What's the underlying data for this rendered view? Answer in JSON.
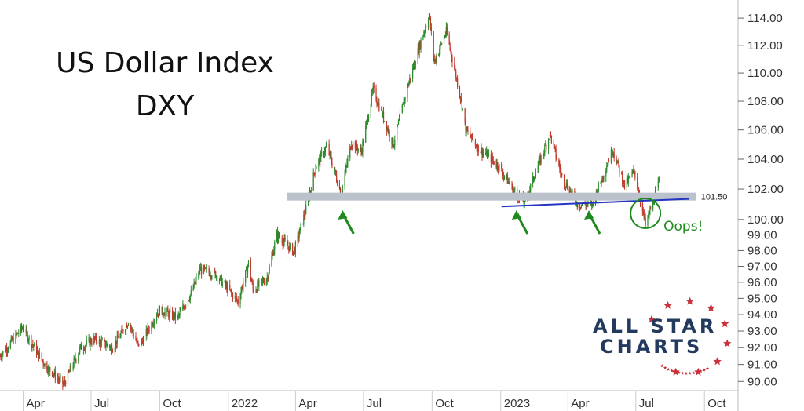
{
  "title_lines": [
    "US Dollar Index",
    "DXY"
  ],
  "logo": {
    "line1": "ALL STAR",
    "line2": "CHARTS",
    "navy": "#233a5e",
    "star_color": "#c8323a"
  },
  "colors": {
    "up": "#2e8b2e",
    "down": "#c0392b",
    "band": "#bcc2cb",
    "trendline": "#2434c4",
    "annotation": "#1e8a1e"
  },
  "chart_data": {
    "type": "candlestick",
    "title": "US Dollar Index DXY",
    "x_range": [
      "2021-03-01",
      "2023-11-15"
    ],
    "y_scale": "log",
    "ylim": [
      89.6,
      115.0
    ],
    "grid": false,
    "y_ticks": [
      90,
      91,
      92,
      93,
      94,
      95,
      96,
      97,
      98,
      99,
      100,
      102,
      104,
      106,
      108,
      110,
      112,
      114
    ],
    "y_tick_labels": [
      "90.00",
      "91.00",
      "92.00",
      "93.00",
      "94.00",
      "95.00",
      "96.00",
      "97.00",
      "98.00",
      "99.00",
      "100.00",
      "102.00",
      "104.00",
      "106.00",
      "108.00",
      "110.00",
      "112.00",
      "114.00"
    ],
    "x_ticks": [
      {
        "date": "2021-04-01",
        "label": "Apr"
      },
      {
        "date": "2021-07-01",
        "label": "Jul"
      },
      {
        "date": "2021-10-01",
        "label": "Oct"
      },
      {
        "date": "2022-01-01",
        "label": "2022"
      },
      {
        "date": "2022-04-01",
        "label": "Apr"
      },
      {
        "date": "2022-07-01",
        "label": "Jul"
      },
      {
        "date": "2022-10-01",
        "label": "Oct"
      },
      {
        "date": "2023-01-01",
        "label": "2023"
      },
      {
        "date": "2023-04-01",
        "label": "Apr"
      },
      {
        "date": "2023-07-01",
        "label": "Jul"
      },
      {
        "date": "2023-10-01",
        "label": "Oct"
      }
    ],
    "closes_path": [
      [
        "2021-03-01",
        91.5
      ],
      [
        "2021-03-31",
        93.2
      ],
      [
        "2021-04-30",
        91.0
      ],
      [
        "2021-05-25",
        89.8
      ],
      [
        "2021-06-17",
        92.0
      ],
      [
        "2021-07-05",
        92.5
      ],
      [
        "2021-07-30",
        92.0
      ],
      [
        "2021-08-20",
        93.6
      ],
      [
        "2021-09-03",
        92.0
      ],
      [
        "2021-09-30",
        94.3
      ],
      [
        "2021-10-25",
        93.8
      ],
      [
        "2021-11-12",
        95.3
      ],
      [
        "2021-11-24",
        96.8
      ],
      [
        "2021-12-15",
        96.5
      ],
      [
        "2022-01-14",
        94.8
      ],
      [
        "2022-01-28",
        97.2
      ],
      [
        "2022-02-03",
        95.5
      ],
      [
        "2022-02-22",
        96.3
      ],
      [
        "2022-03-07",
        99.0
      ],
      [
        "2022-03-30",
        97.9
      ],
      [
        "2022-04-14",
        100.5
      ],
      [
        "2022-04-28",
        103.5
      ],
      [
        "2022-05-13",
        104.9
      ],
      [
        "2022-06-01",
        101.7
      ],
      [
        "2022-06-15",
        105.2
      ],
      [
        "2022-06-28",
        104.5
      ],
      [
        "2022-07-14",
        108.8
      ],
      [
        "2022-08-10",
        105.0
      ],
      [
        "2022-08-29",
        109.0
      ],
      [
        "2022-09-27",
        114.3
      ],
      [
        "2022-10-04",
        110.8
      ],
      [
        "2022-10-20",
        113.0
      ],
      [
        "2022-11-10",
        107.8
      ],
      [
        "2022-11-15",
        106.0
      ],
      [
        "2022-12-01",
        104.8
      ],
      [
        "2022-12-30",
        103.5
      ],
      [
        "2023-01-17",
        102.0
      ],
      [
        "2023-02-02",
        101.1
      ],
      [
        "2023-03-08",
        105.7
      ],
      [
        "2023-03-24",
        102.8
      ],
      [
        "2023-04-14",
        101.0
      ],
      [
        "2023-05-04",
        101.0
      ],
      [
        "2023-05-31",
        104.7
      ],
      [
        "2023-06-16",
        102.2
      ],
      [
        "2023-06-29",
        103.2
      ],
      [
        "2023-07-14",
        99.6
      ],
      [
        "2023-07-28",
        101.8
      ],
      [
        "2023-08-02",
        102.6
      ]
    ],
    "support_band": {
      "value": 101.5,
      "label": "101.50",
      "x_start": "2022-03-20",
      "x_end": "2023-09-20"
    },
    "trendline": {
      "from": [
        "2023-01-02",
        100.85
      ],
      "to": [
        "2023-09-10",
        101.35
      ]
    },
    "annotations": [
      {
        "type": "arrow",
        "date": "2022-06-01"
      },
      {
        "type": "arrow",
        "date": "2023-01-20"
      },
      {
        "type": "arrow",
        "date": "2023-04-27"
      },
      {
        "type": "circle",
        "date": "2023-07-14",
        "value": 100.4,
        "text": "Oops!"
      }
    ]
  }
}
